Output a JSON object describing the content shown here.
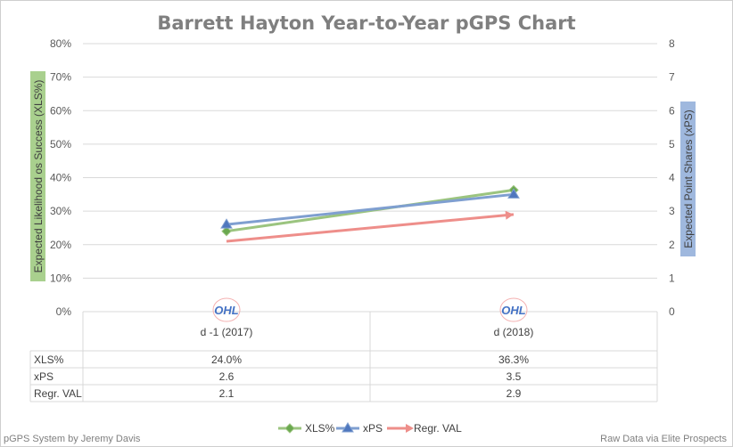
{
  "chart_data": {
    "type": "line",
    "title": "Barrett Hayton Year-to-Year pGPS Chart",
    "categories": [
      "d -1 (2017)",
      "d (2018)"
    ],
    "y_left_label": "Expected Likelihood os Success (XLS%)",
    "y_right_label": "Expected Point Shares (xPS)",
    "y_left_lim": [
      0,
      80
    ],
    "y_right_lim": [
      0,
      8
    ],
    "y_left_ticks": [
      "0%",
      "10%",
      "20%",
      "30%",
      "40%",
      "50%",
      "60%",
      "70%",
      "80%"
    ],
    "y_right_ticks": [
      "0",
      "1",
      "2",
      "3",
      "4",
      "5",
      "6",
      "7",
      "8"
    ],
    "grid": true,
    "legend_position": "bottom",
    "series": [
      {
        "name": "XLS%",
        "axis": "left",
        "values": [
          24.0,
          36.3
        ],
        "display": [
          "24.0%",
          "36.3%"
        ],
        "color": "#9bc47f",
        "marker": "diamond-line"
      },
      {
        "name": "xPS",
        "axis": "right",
        "values": [
          2.6,
          3.5
        ],
        "display": [
          "2.6",
          "3.5"
        ],
        "color": "#7f9fd0",
        "marker": "triangle-line"
      },
      {
        "name": "Regr. VAL",
        "axis": "right",
        "values": [
          2.1,
          2.9
        ],
        "display": [
          "2.1",
          "2.9"
        ],
        "color": "#ee8e8a",
        "marker": "arrow-line"
      }
    ],
    "category_logo": "OHL"
  },
  "footer": {
    "left": "pGPS System by Jeremy Davis",
    "right": "Raw Data via Elite Prospects"
  },
  "colors": {
    "title": "#7f7f7f",
    "grid": "#d9d9d9",
    "left_label_bg": "#a9d08e",
    "right_label_bg": "#9fb8de",
    "logo": "#4472c4"
  }
}
